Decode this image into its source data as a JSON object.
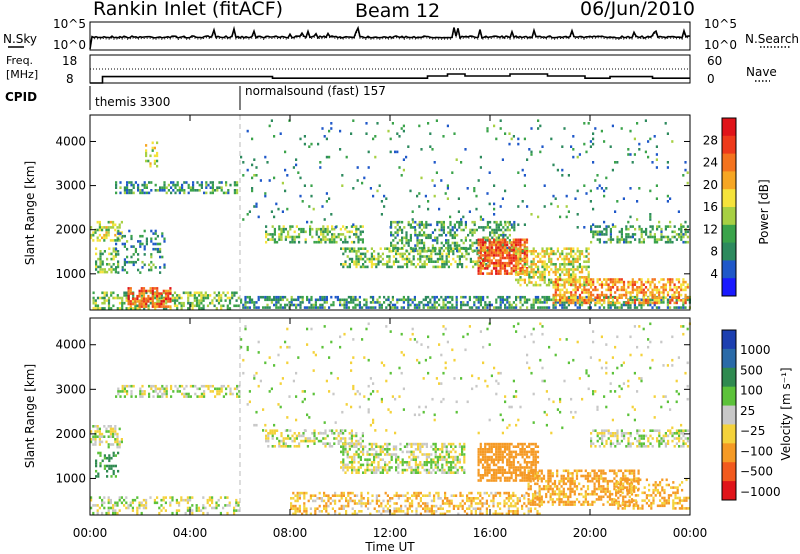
{
  "header": {
    "station": "Rankin Inlet (fitACF)",
    "beam": "Beam 12",
    "date": "06/Jun/2010"
  },
  "noise_panel": {
    "left_label": "N.Sky",
    "left_ticks": [
      "10^5",
      "10^0"
    ],
    "right_label": "N.Search",
    "right_ticks": [
      "10^5",
      "10^0"
    ]
  },
  "freq_panel": {
    "left_label_top": "Freq.",
    "left_label_bottom": "[MHz]",
    "left_ticks": [
      "18",
      "8"
    ],
    "right_label": "Nave",
    "right_ticks": [
      "60",
      "0"
    ]
  },
  "cpid": {
    "label": "CPID",
    "modes": [
      {
        "name": "themis 3300",
        "start_hour": 0
      },
      {
        "name": "normalsound (fast) 157",
        "start_hour": 6
      }
    ]
  },
  "power_panel": {
    "ylabel": "Slant Range [km]",
    "yticks": [
      "4000",
      "3000",
      "2000",
      "1000"
    ],
    "colorbar_label": "Power [dB]",
    "colorbar_ticks": [
      "28",
      "24",
      "20",
      "16",
      "12",
      "8",
      "4"
    ],
    "colors": [
      "#1a1aff",
      "#1f58c9",
      "#2d8a5e",
      "#3aa34a",
      "#a7d043",
      "#f5e33b",
      "#f6a623",
      "#f4731e",
      "#ee3a1b",
      "#e0141a"
    ]
  },
  "velocity_panel": {
    "ylabel": "Slant Range [km]",
    "yticks": [
      "4000",
      "3000",
      "2000",
      "1000"
    ],
    "colorbar_label": "Velocity [m s⁻¹]",
    "colorbar_ticks": [
      "1000",
      "500",
      "100",
      "25",
      "−25",
      "−100",
      "−500",
      "−1000"
    ],
    "colors": [
      "#1c3fb0",
      "#2a6aa8",
      "#2f8a50",
      "#5cc23a",
      "#c8c8c8",
      "#f4d23b",
      "#f59a25",
      "#f25a1e",
      "#e0141a"
    ]
  },
  "x_axis": {
    "ticks": [
      "00:00",
      "04:00",
      "08:00",
      "12:00",
      "16:00",
      "20:00",
      "00:00"
    ],
    "label": "Time UT"
  },
  "chart_data": [
    {
      "type": "line",
      "panel": "noise",
      "x_range_hours": [
        0,
        24
      ],
      "log_scale": true,
      "note_range": [
        1,
        100000
      ]
    },
    {
      "type": "line",
      "panel": "frequency",
      "x_range_hours": [
        0,
        24
      ],
      "ylim_mhz": [
        8,
        18
      ],
      "segments": [
        {
          "from": 0,
          "to": 0.5,
          "value": 8
        },
        {
          "from": 0.5,
          "to": 7.3,
          "value": 10.3
        },
        {
          "from": 7.3,
          "to": 13.5,
          "value": 9.7
        },
        {
          "from": 13.5,
          "to": 14.3,
          "value": 10.5
        },
        {
          "from": 14.3,
          "to": 15.0,
          "value": 11.2
        },
        {
          "from": 15.0,
          "to": 16.8,
          "value": 10.5
        },
        {
          "from": 16.8,
          "to": 18.3,
          "value": 11.2
        },
        {
          "from": 18.3,
          "to": 19.8,
          "value": 10.5
        },
        {
          "from": 19.8,
          "to": 20.8,
          "value": 9.7
        },
        {
          "from": 20.8,
          "to": 22.5,
          "value": 10.3
        },
        {
          "from": 22.5,
          "to": 24,
          "value": 9.7
        }
      ]
    },
    {
      "type": "heatmap",
      "panel": "power",
      "x_range_hours": [
        0,
        24
      ],
      "ylim_km": [
        180,
        4600
      ],
      "zlim_db": [
        0,
        30
      ],
      "regions": [
        {
          "t0": 0.1,
          "t1": 6.0,
          "r0": 180,
          "r1": 600,
          "z": 12,
          "density": 0.55
        },
        {
          "t0": 1.5,
          "t1": 3.3,
          "r0": 200,
          "r1": 700,
          "z": 24,
          "density": 0.7
        },
        {
          "t0": 0.0,
          "t1": 1.3,
          "r0": 1700,
          "r1": 2200,
          "z": 14,
          "density": 0.6
        },
        {
          "t0": 0.2,
          "t1": 1.2,
          "r0": 1000,
          "r1": 1600,
          "z": 12,
          "density": 0.5
        },
        {
          "t0": 1.0,
          "t1": 6.0,
          "r0": 2800,
          "r1": 3100,
          "z": 9,
          "density": 0.5
        },
        {
          "t0": 2.2,
          "t1": 2.7,
          "r0": 3400,
          "r1": 4000,
          "z": 14,
          "density": 0.4
        },
        {
          "t0": 1.0,
          "t1": 3.0,
          "r0": 1000,
          "r1": 2000,
          "z": 8,
          "density": 0.25
        },
        {
          "t0": 6.0,
          "t1": 24,
          "r0": 180,
          "r1": 500,
          "z": 8,
          "density": 0.55
        },
        {
          "t0": 7.0,
          "t1": 11.0,
          "r0": 1700,
          "r1": 2100,
          "z": 12,
          "density": 0.5
        },
        {
          "t0": 10.0,
          "t1": 16.0,
          "r0": 1100,
          "r1": 1600,
          "z": 12,
          "density": 0.55
        },
        {
          "t0": 12.0,
          "t1": 17.0,
          "r0": 1500,
          "r1": 2200,
          "z": 10,
          "density": 0.45
        },
        {
          "t0": 15.5,
          "t1": 17.5,
          "r0": 1000,
          "r1": 1800,
          "z": 24,
          "density": 0.75
        },
        {
          "t0": 17.0,
          "t1": 20.0,
          "r0": 700,
          "r1": 1600,
          "z": 16,
          "density": 0.6
        },
        {
          "t0": 18.5,
          "t1": 24,
          "r0": 300,
          "r1": 900,
          "z": 20,
          "density": 0.6
        },
        {
          "t0": 20.0,
          "t1": 24,
          "r0": 1700,
          "r1": 2100,
          "z": 10,
          "density": 0.5
        },
        {
          "t0": 6.0,
          "t1": 24,
          "r0": 2000,
          "r1": 4500,
          "z": 8,
          "density": 0.04
        }
      ]
    },
    {
      "type": "heatmap",
      "panel": "velocity",
      "x_range_hours": [
        0,
        24
      ],
      "ylim_km": [
        180,
        4600
      ],
      "zlim_ms": [
        -1000,
        1000
      ],
      "regions": [
        {
          "t0": 0.0,
          "t1": 6.0,
          "r0": 180,
          "r1": 600,
          "z": 0,
          "density": 0.4
        },
        {
          "t0": 0.0,
          "t1": 1.3,
          "r0": 1700,
          "r1": 2200,
          "z": 0,
          "density": 0.55
        },
        {
          "t0": 0.2,
          "t1": 1.2,
          "r0": 1000,
          "r1": 1600,
          "z": 150,
          "density": 0.4
        },
        {
          "t0": 1.0,
          "t1": 6.0,
          "r0": 2800,
          "r1": 3100,
          "z": 0,
          "density": 0.5
        },
        {
          "t0": 7.0,
          "t1": 11.0,
          "r0": 1700,
          "r1": 2100,
          "z": 0,
          "density": 0.5
        },
        {
          "t0": 10.0,
          "t1": 15.0,
          "r0": 1100,
          "r1": 1800,
          "z": 0,
          "density": 0.55
        },
        {
          "t0": 15.5,
          "t1": 18.0,
          "r0": 900,
          "r1": 1800,
          "z": -400,
          "density": 0.75
        },
        {
          "t0": 17.5,
          "t1": 22.0,
          "r0": 400,
          "r1": 1200,
          "z": -150,
          "density": 0.55
        },
        {
          "t0": 8.0,
          "t1": 18.0,
          "r0": 180,
          "r1": 700,
          "z": -80,
          "density": 0.45
        },
        {
          "t0": 20.0,
          "t1": 24,
          "r0": 1700,
          "r1": 2100,
          "z": 0,
          "density": 0.5
        },
        {
          "t0": 21.0,
          "t1": 24,
          "r0": 300,
          "r1": 1000,
          "z": -120,
          "density": 0.4
        },
        {
          "t0": 6.0,
          "t1": 24,
          "r0": 2000,
          "r1": 4500,
          "z": 0,
          "density": 0.04
        }
      ]
    }
  ]
}
